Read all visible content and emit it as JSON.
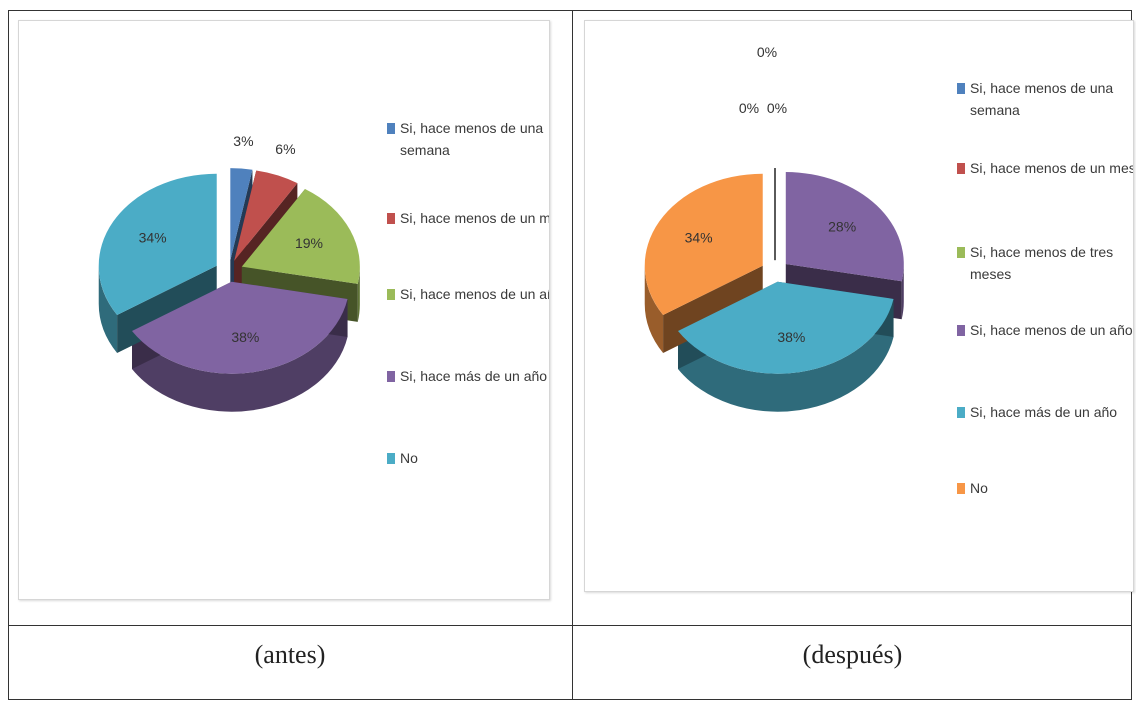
{
  "colors": {
    "blue": "#4f81bd",
    "red": "#c0504d",
    "green": "#9bbb59",
    "purple": "#8064a2",
    "cyan": "#4bacc6",
    "orange": "#f79646"
  },
  "captions": {
    "left": "(antes)",
    "right": "(después)"
  },
  "chart_data": [
    {
      "type": "pie",
      "title": "",
      "style": "3d-exploded",
      "legend_position": "right",
      "slices": [
        {
          "label": "Si, hace menos de una semana",
          "value": 3,
          "value_label": "3%",
          "color": "blue"
        },
        {
          "label": "Si, hace menos de un mes",
          "value": 6,
          "value_label": "6%",
          "color": "red"
        },
        {
          "label": "Si, hace menos de un año",
          "value": 19,
          "value_label": "19%",
          "color": "green"
        },
        {
          "label": "Si, hace más de un año",
          "value": 38,
          "value_label": "38%",
          "color": "purple"
        },
        {
          "label": "No",
          "value": 34,
          "value_label": "34%",
          "color": "cyan"
        }
      ]
    },
    {
      "type": "pie",
      "title": "",
      "style": "3d-exploded",
      "legend_position": "right",
      "slices": [
        {
          "label": "Si, hace menos de una semana",
          "value": 0,
          "value_label": "0%",
          "color": "blue"
        },
        {
          "label": "Si, hace menos de un mes",
          "value": 0,
          "value_label": "0%",
          "color": "red"
        },
        {
          "label": "Si, hace menos de tres meses",
          "value": 0,
          "value_label": "0%",
          "color": "green"
        },
        {
          "label": "Si, hace menos de un año",
          "value": 28,
          "value_label": "28%",
          "color": "purple"
        },
        {
          "label": "Si, hace más de un año",
          "value": 38,
          "value_label": "38%",
          "color": "cyan"
        },
        {
          "label": "No",
          "value": 34,
          "value_label": "34%",
          "color": "orange"
        }
      ]
    }
  ]
}
